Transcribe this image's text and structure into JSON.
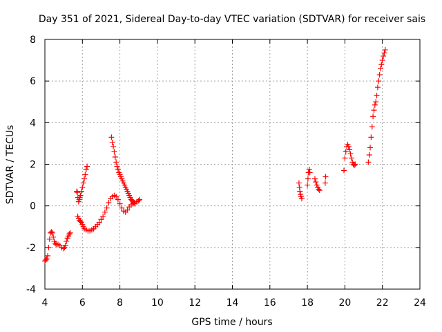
{
  "chart_data": {
    "type": "scatter",
    "title": "Day 351 of 2021, Sidereal Day-to-day VTEC variation (SDTVAR) for receiver sais",
    "xlabel": "GPS time / hours",
    "ylabel": "SDTVAR / TECUs",
    "xlim": [
      4,
      24
    ],
    "ylim": [
      -4,
      8
    ],
    "xticks": [
      4,
      6,
      8,
      10,
      12,
      14,
      16,
      18,
      20,
      22,
      24
    ],
    "yticks": [
      -4,
      -2,
      0,
      2,
      4,
      6,
      8
    ],
    "xtick_labels": [
      "4",
      "6",
      "8",
      "10",
      "12",
      "14",
      "16",
      "18",
      "20",
      "22",
      "24"
    ],
    "ytick_labels": [
      "-4",
      "-2",
      "0",
      "2",
      "4",
      "6",
      "8"
    ],
    "grid": true,
    "marker": "+",
    "series": [
      {
        "name": "SDTVAR",
        "color": "#ff0000",
        "x": [
          4.0,
          4.05,
          4.1,
          4.15,
          4.2,
          4.25,
          4.3,
          4.35,
          4.4,
          4.45,
          4.5,
          4.55,
          4.6,
          4.7,
          4.8,
          4.9,
          5.0,
          5.05,
          5.1,
          5.15,
          5.2,
          5.25,
          5.3,
          5.35,
          5.7,
          5.73,
          5.76,
          5.8,
          5.83,
          5.86,
          5.9,
          5.95,
          6.0,
          6.05,
          6.1,
          6.15,
          6.2,
          6.25,
          5.75,
          5.8,
          5.85,
          5.9,
          5.95,
          6.0,
          6.05,
          6.1,
          6.2,
          6.3,
          6.4,
          6.5,
          6.6,
          6.7,
          6.8,
          6.9,
          7.0,
          7.1,
          7.2,
          7.3,
          7.4,
          7.5,
          7.6,
          7.7,
          7.8,
          7.9,
          8.0,
          8.1,
          8.2,
          8.3,
          8.4,
          8.5,
          8.6,
          8.7,
          8.8,
          8.9,
          9.0,
          9.05,
          7.55,
          7.6,
          7.65,
          7.7,
          7.75,
          7.8,
          7.85,
          7.9,
          7.95,
          8.0,
          8.05,
          8.1,
          8.15,
          8.2,
          8.25,
          8.3,
          8.35,
          8.4,
          8.45,
          8.5,
          8.55,
          8.6,
          8.65,
          8.7,
          8.75,
          8.8,
          17.55,
          17.58,
          17.6,
          17.63,
          17.66,
          17.7,
          18.0,
          18.03,
          18.06,
          18.1,
          18.13,
          18.4,
          18.45,
          18.5,
          18.55,
          18.6,
          18.65,
          18.95,
          18.97,
          19.95,
          20.0,
          20.05,
          20.1,
          20.15,
          20.2,
          20.25,
          20.3,
          20.35,
          20.4,
          20.45,
          20.5,
          20.55,
          21.25,
          21.3,
          21.35,
          21.4,
          21.45,
          21.5,
          21.55,
          21.6,
          21.65,
          21.7,
          21.75,
          21.8,
          21.85,
          21.9,
          21.95,
          22.0,
          22.05,
          22.1,
          22.15
        ],
        "y": [
          -2.65,
          -2.6,
          -2.55,
          -2.4,
          -2.0,
          -1.6,
          -1.3,
          -1.25,
          -1.3,
          -1.5,
          -1.7,
          -1.8,
          -1.85,
          -1.85,
          -1.9,
          -2.0,
          -2.05,
          -2.0,
          -1.9,
          -1.7,
          -1.55,
          -1.45,
          -1.35,
          -1.3,
          0.7,
          0.65,
          0.4,
          0.2,
          0.3,
          0.4,
          0.5,
          0.7,
          0.9,
          1.1,
          1.3,
          1.5,
          1.75,
          1.9,
          -0.5,
          -0.6,
          -0.7,
          -0.75,
          -0.8,
          -0.9,
          -1.0,
          -1.1,
          -1.15,
          -1.2,
          -1.2,
          -1.15,
          -1.1,
          -1.0,
          -0.9,
          -0.8,
          -0.65,
          -0.5,
          -0.3,
          -0.1,
          0.15,
          0.35,
          0.45,
          0.5,
          0.45,
          0.3,
          0.1,
          -0.1,
          -0.25,
          -0.3,
          -0.2,
          -0.05,
          0.05,
          0.1,
          0.15,
          0.2,
          0.25,
          0.3,
          3.3,
          3.05,
          2.85,
          2.6,
          2.35,
          2.1,
          1.9,
          1.75,
          1.6,
          1.5,
          1.4,
          1.3,
          1.2,
          1.1,
          1.0,
          0.9,
          0.8,
          0.7,
          0.6,
          0.5,
          0.4,
          0.3,
          0.25,
          0.2,
          0.15,
          0.1,
          1.1,
          0.9,
          0.7,
          0.55,
          0.45,
          0.35,
          1.0,
          1.3,
          1.6,
          1.75,
          1.6,
          1.3,
          1.15,
          1.0,
          0.9,
          0.8,
          0.75,
          1.1,
          1.4,
          1.7,
          2.3,
          2.6,
          2.85,
          2.95,
          2.85,
          2.7,
          2.5,
          2.3,
          2.1,
          2.0,
          1.95,
          2.0,
          2.1,
          2.45,
          2.8,
          3.3,
          3.8,
          4.3,
          4.6,
          4.85,
          5.0,
          5.3,
          5.7,
          6.0,
          6.3,
          6.6,
          6.8,
          7.0,
          7.2,
          7.35,
          7.5
        ]
      }
    ]
  }
}
